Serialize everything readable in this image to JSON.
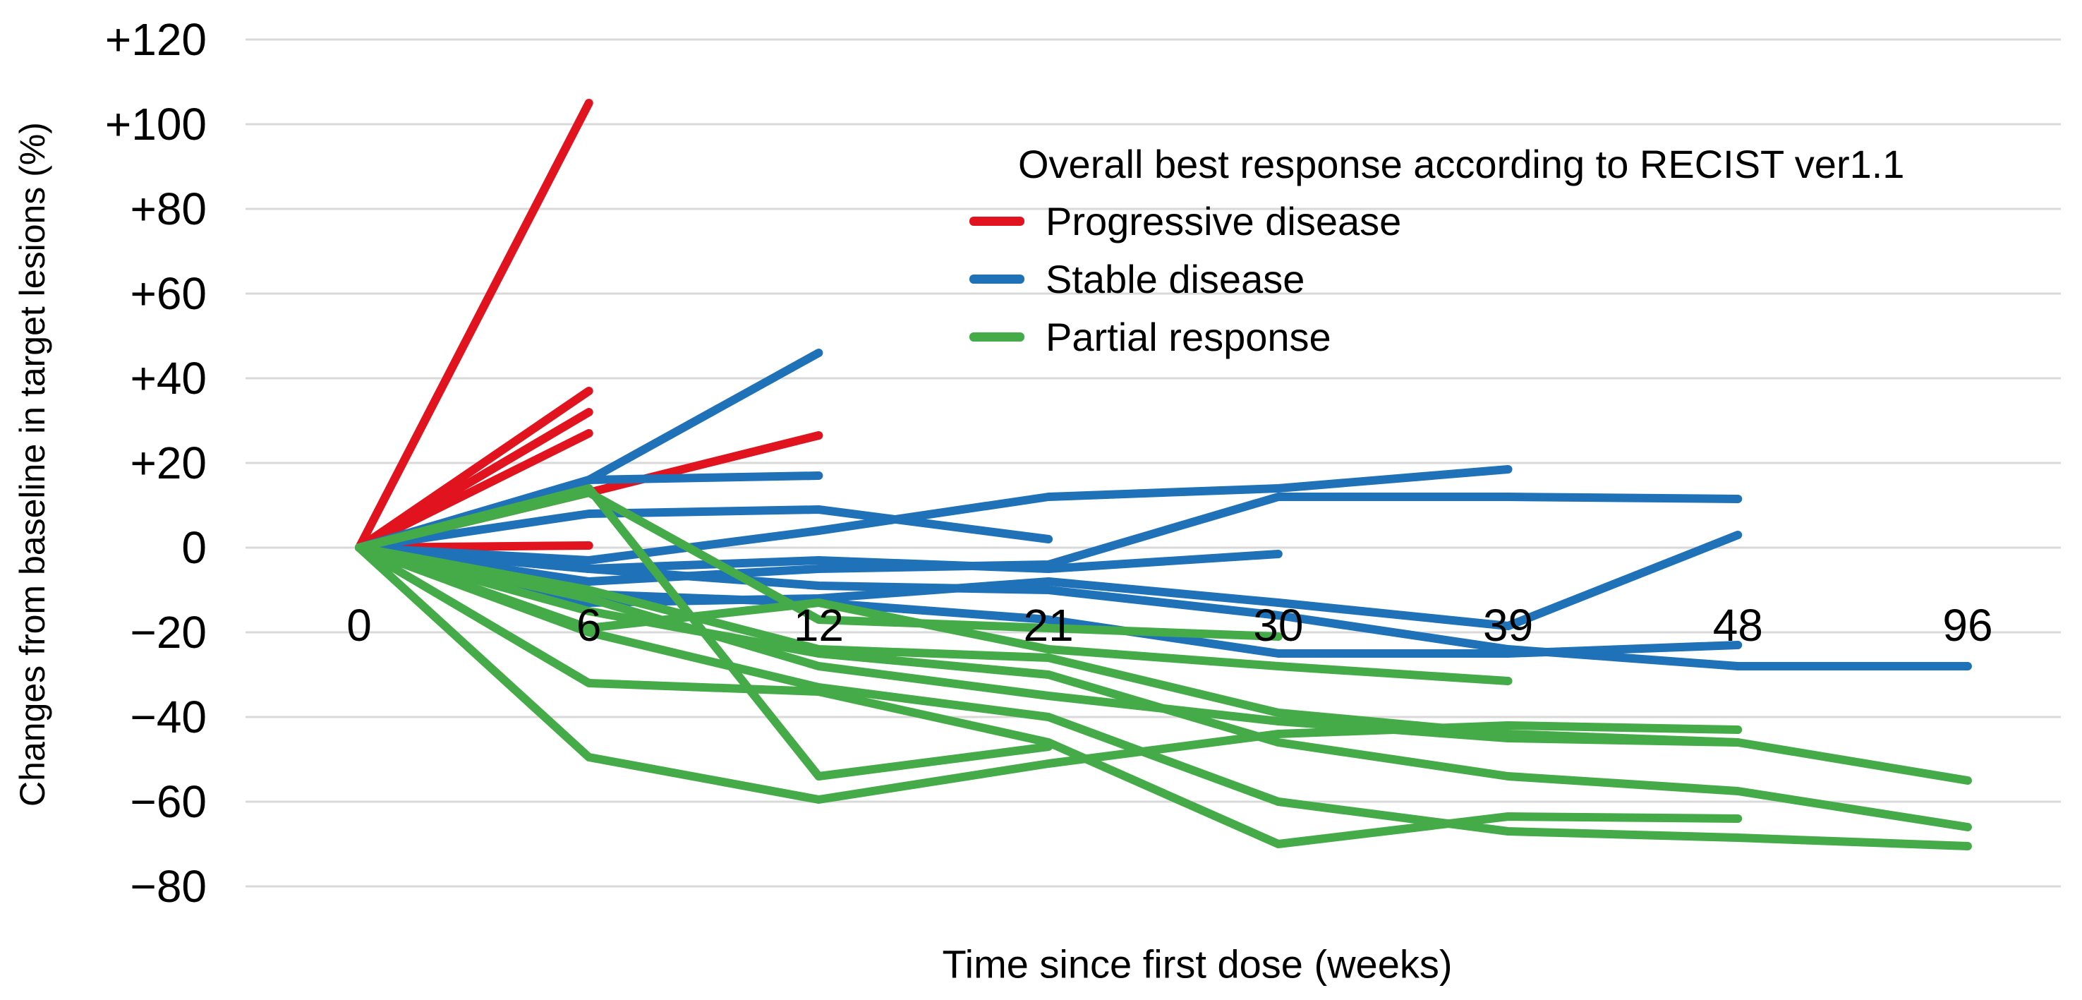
{
  "chart_data": {
    "type": "line",
    "subtype": "spider-plot-individual-patients",
    "title": "",
    "xlabel": "Time since first dose (weeks)",
    "ylabel": "Changes from baseline in target lesions (%)",
    "x_categories": [
      0,
      6,
      12,
      21,
      30,
      39,
      48,
      96
    ],
    "x_axis_spacing": "categorical-equal",
    "ylim": [
      -80,
      120
    ],
    "y_ticks": [
      {
        "value": 120,
        "label": "+120"
      },
      {
        "value": 100,
        "label": "+100"
      },
      {
        "value": 80,
        "label": "+80"
      },
      {
        "value": 60,
        "label": "+60"
      },
      {
        "value": 40,
        "label": "+40"
      },
      {
        "value": 20,
        "label": "+20"
      },
      {
        "value": 0,
        "label": "0"
      },
      {
        "value": -20,
        "label": "−20"
      },
      {
        "value": -40,
        "label": "−40"
      },
      {
        "value": -60,
        "label": "−60"
      },
      {
        "value": -80,
        "label": "−80"
      }
    ],
    "grid": true,
    "gridline_color": "#d9d9d9",
    "legend": {
      "title": "Overall best response according to RECIST ver1.1",
      "position": "top-right-inside",
      "entries": [
        {
          "key": "PD",
          "label": "Progressive disease",
          "color": "#e1131e"
        },
        {
          "key": "SD",
          "label": "Stable disease",
          "color": "#1f72b8"
        },
        {
          "key": "PR",
          "label": "Partial response",
          "color": "#45ab49"
        }
      ]
    },
    "series": [
      {
        "id": "PD-1",
        "group": "PD",
        "points": [
          [
            0,
            0
          ],
          [
            6,
            105
          ]
        ]
      },
      {
        "id": "PD-2",
        "group": "PD",
        "points": [
          [
            0,
            0
          ],
          [
            6,
            37
          ]
        ]
      },
      {
        "id": "PD-3",
        "group": "PD",
        "points": [
          [
            0,
            0
          ],
          [
            6,
            32
          ]
        ]
      },
      {
        "id": "PD-4",
        "group": "PD",
        "points": [
          [
            0,
            0
          ],
          [
            6,
            27
          ]
        ]
      },
      {
        "id": "PD-5",
        "group": "PD",
        "points": [
          [
            0,
            0
          ],
          [
            6,
            13
          ],
          [
            12,
            26.5
          ]
        ]
      },
      {
        "id": "PD-6",
        "group": "PD",
        "points": [
          [
            0,
            0
          ],
          [
            6,
            0.5
          ]
        ]
      },
      {
        "id": "SD-1",
        "group": "SD",
        "points": [
          [
            0,
            0
          ],
          [
            6,
            16
          ],
          [
            12,
            46
          ]
        ]
      },
      {
        "id": "SD-2",
        "group": "SD",
        "points": [
          [
            0,
            0
          ],
          [
            6,
            16
          ],
          [
            12,
            17
          ]
        ]
      },
      {
        "id": "SD-3",
        "group": "SD",
        "points": [
          [
            0,
            0
          ],
          [
            6,
            8
          ],
          [
            12,
            9
          ],
          [
            21,
            2
          ]
        ]
      },
      {
        "id": "SD-4",
        "group": "SD",
        "points": [
          [
            0,
            0
          ],
          [
            6,
            -5
          ],
          [
            12,
            -3
          ],
          [
            21,
            -5
          ],
          [
            30,
            -1.5
          ]
        ]
      },
      {
        "id": "SD-5",
        "group": "SD",
        "points": [
          [
            0,
            0
          ],
          [
            6,
            -3
          ],
          [
            12,
            4
          ],
          [
            21,
            12
          ],
          [
            30,
            14
          ],
          [
            39,
            18.5
          ]
        ]
      },
      {
        "id": "SD-6",
        "group": "SD",
        "points": [
          [
            0,
            0
          ],
          [
            6,
            -8
          ],
          [
            12,
            -5
          ],
          [
            21,
            -4
          ],
          [
            30,
            12
          ],
          [
            39,
            12
          ],
          [
            48,
            11.5
          ]
        ]
      },
      {
        "id": "SD-7",
        "group": "SD",
        "points": [
          [
            0,
            0
          ],
          [
            6,
            -13
          ],
          [
            12,
            -12
          ],
          [
            21,
            -8
          ],
          [
            30,
            -13
          ],
          [
            39,
            -18.5
          ],
          [
            48,
            3
          ]
        ]
      },
      {
        "id": "SD-8",
        "group": "SD",
        "points": [
          [
            0,
            0
          ],
          [
            6,
            -11
          ],
          [
            12,
            -13
          ],
          [
            21,
            -17
          ],
          [
            30,
            -25
          ],
          [
            39,
            -25
          ],
          [
            48,
            -23
          ]
        ]
      },
      {
        "id": "SD-9",
        "group": "SD",
        "points": [
          [
            0,
            0
          ],
          [
            6,
            -5
          ],
          [
            12,
            -9
          ],
          [
            21,
            -10
          ],
          [
            30,
            -16
          ],
          [
            39,
            -24
          ],
          [
            48,
            -28
          ],
          [
            96,
            -28
          ]
        ]
      },
      {
        "id": "PR-1",
        "group": "PR",
        "points": [
          [
            0,
            0
          ],
          [
            6,
            14
          ],
          [
            12,
            -54
          ],
          [
            21,
            -47
          ]
        ]
      },
      {
        "id": "PR-2",
        "group": "PR",
        "points": [
          [
            0,
            0
          ],
          [
            6,
            13
          ],
          [
            12,
            -17
          ],
          [
            21,
            -19
          ],
          [
            30,
            -21
          ]
        ]
      },
      {
        "id": "PR-3",
        "group": "PR",
        "points": [
          [
            0,
            0
          ],
          [
            6,
            -19
          ],
          [
            12,
            -13
          ],
          [
            21,
            -24
          ],
          [
            30,
            -28
          ],
          [
            39,
            -31.5
          ]
        ]
      },
      {
        "id": "PR-4",
        "group": "PR",
        "points": [
          [
            0,
            0
          ],
          [
            6,
            -10
          ],
          [
            12,
            -24
          ],
          [
            21,
            -26
          ],
          [
            30,
            -39
          ],
          [
            39,
            -44
          ],
          [
            48,
            -46
          ]
        ]
      },
      {
        "id": "PR-5",
        "group": "PR",
        "points": [
          [
            0,
            0
          ],
          [
            6,
            -32
          ],
          [
            12,
            -34
          ],
          [
            21,
            -46
          ],
          [
            30,
            -70
          ],
          [
            39,
            -63.5
          ],
          [
            48,
            -64
          ]
        ]
      },
      {
        "id": "PR-6",
        "group": "PR",
        "points": [
          [
            0,
            0
          ],
          [
            6,
            -49.5
          ],
          [
            12,
            -59.5
          ],
          [
            21,
            -51
          ],
          [
            30,
            -44
          ],
          [
            39,
            -42
          ],
          [
            48,
            -43
          ]
        ]
      },
      {
        "id": "PR-7",
        "group": "PR",
        "points": [
          [
            0,
            0
          ],
          [
            6,
            -12
          ],
          [
            12,
            -28
          ],
          [
            21,
            -35
          ],
          [
            30,
            -41
          ],
          [
            39,
            -45
          ],
          [
            48,
            -46
          ],
          [
            96,
            -55
          ]
        ]
      },
      {
        "id": "PR-8",
        "group": "PR",
        "points": [
          [
            0,
            0
          ],
          [
            6,
            -15
          ],
          [
            12,
            -25
          ],
          [
            21,
            -30
          ],
          [
            30,
            -46
          ],
          [
            39,
            -54
          ],
          [
            48,
            -57.5
          ],
          [
            96,
            -66
          ]
        ]
      },
      {
        "id": "PR-9",
        "group": "PR",
        "points": [
          [
            0,
            0
          ],
          [
            6,
            -20
          ],
          [
            12,
            -33
          ],
          [
            21,
            -40
          ],
          [
            30,
            -60
          ],
          [
            39,
            -67
          ],
          [
            48,
            -68.5
          ],
          [
            96,
            -70.5
          ]
        ]
      }
    ]
  }
}
